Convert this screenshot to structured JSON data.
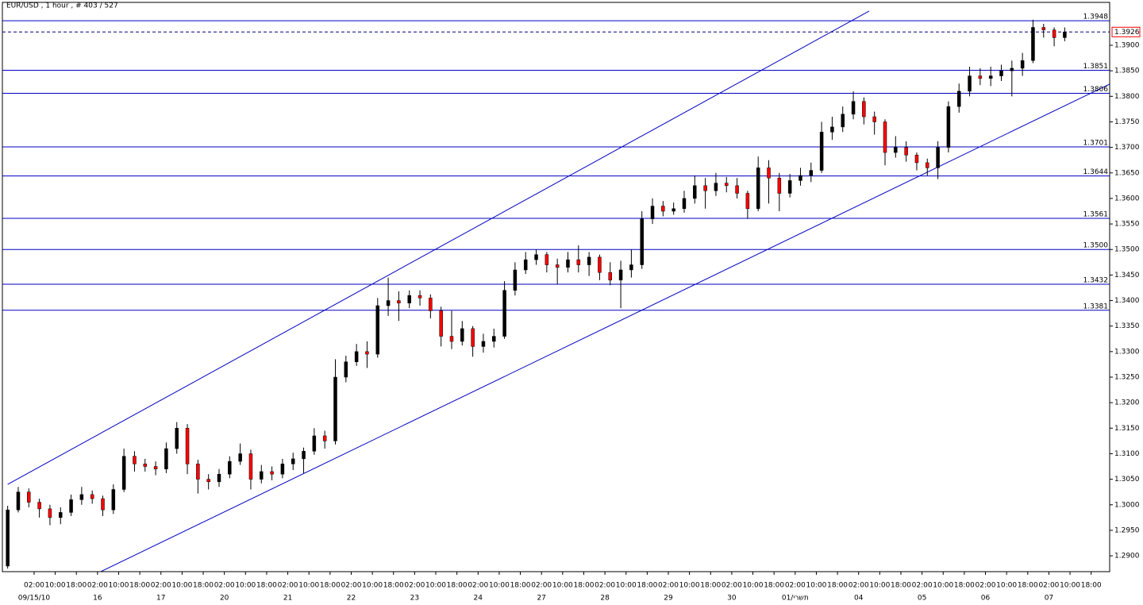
{
  "chart_data": {
    "type": "ohlc",
    "title": "EUR/USD , 1 hour , # 403 / 527",
    "x": [
      0,
      4,
      8,
      12,
      16,
      20,
      24,
      28,
      32,
      36,
      40,
      44,
      48,
      52,
      56,
      60,
      64,
      68,
      72,
      76,
      80,
      84,
      88,
      92,
      96,
      100,
      104,
      108,
      112,
      116,
      120,
      124,
      128,
      132,
      136,
      140,
      144,
      148,
      152,
      156,
      160,
      164,
      168,
      172,
      176,
      180,
      184,
      188,
      192,
      196,
      200,
      204,
      208,
      212,
      216,
      220,
      224,
      228,
      232,
      236,
      240,
      244,
      248,
      252,
      256,
      260,
      264,
      268,
      272,
      276,
      280,
      284,
      288,
      292,
      296,
      300,
      304,
      308,
      312,
      316,
      320,
      324,
      328,
      332,
      336,
      340,
      344,
      348,
      352,
      356,
      360,
      364,
      368,
      372,
      376,
      380,
      384,
      388,
      392,
      396,
      400
    ],
    "ohlc": [
      [
        1.288,
        1.2998,
        1.2875,
        1.299
      ],
      [
        1.299,
        1.3035,
        1.2985,
        1.3025
      ],
      [
        1.3025,
        1.3032,
        1.2995,
        1.3005
      ],
      [
        1.3005,
        1.3012,
        1.2975,
        1.2992
      ],
      [
        1.2992,
        1.3,
        1.296,
        1.2975
      ],
      [
        1.2975,
        1.2995,
        1.2962,
        1.2985
      ],
      [
        1.2985,
        1.302,
        1.2978,
        1.301
      ],
      [
        1.301,
        1.3035,
        1.3,
        1.302
      ],
      [
        1.302,
        1.3028,
        1.3002,
        1.3012
      ],
      [
        1.3012,
        1.3018,
        1.2978,
        1.299
      ],
      [
        1.299,
        1.304,
        1.2982,
        1.303
      ],
      [
        1.303,
        1.311,
        1.3025,
        1.3095
      ],
      [
        1.3095,
        1.3105,
        1.3065,
        1.308
      ],
      [
        1.308,
        1.309,
        1.3065,
        1.3075
      ],
      [
        1.3075,
        1.3085,
        1.3058,
        1.307
      ],
      [
        1.307,
        1.3122,
        1.3062,
        1.311
      ],
      [
        1.311,
        1.3162,
        1.31,
        1.315
      ],
      [
        1.315,
        1.3158,
        1.306,
        1.308
      ],
      [
        1.308,
        1.3088,
        1.3022,
        1.305
      ],
      [
        1.305,
        1.306,
        1.303,
        1.3045
      ],
      [
        1.3045,
        1.307,
        1.3035,
        1.306
      ],
      [
        1.306,
        1.3095,
        1.3052,
        1.3085
      ],
      [
        1.3085,
        1.312,
        1.3078,
        1.31
      ],
      [
        1.31,
        1.3108,
        1.303,
        1.305
      ],
      [
        1.305,
        1.3078,
        1.3042,
        1.3065
      ],
      [
        1.3065,
        1.3075,
        1.3048,
        1.306
      ],
      [
        1.306,
        1.309,
        1.3052,
        1.308
      ],
      [
        1.308,
        1.3102,
        1.3068,
        1.309
      ],
      [
        1.309,
        1.3112,
        1.3062,
        1.3105
      ],
      [
        1.3105,
        1.315,
        1.3098,
        1.3135
      ],
      [
        1.3135,
        1.3145,
        1.311,
        1.3125
      ],
      [
        1.3125,
        1.3285,
        1.3118,
        1.325
      ],
      [
        1.325,
        1.3292,
        1.324,
        1.328
      ],
      [
        1.328,
        1.3315,
        1.3272,
        1.33
      ],
      [
        1.33,
        1.332,
        1.3268,
        1.3295
      ],
      [
        1.3295,
        1.3405,
        1.3288,
        1.339
      ],
      [
        1.339,
        1.3445,
        1.337,
        1.34
      ],
      [
        1.34,
        1.3418,
        1.336,
        1.3395
      ],
      [
        1.3395,
        1.342,
        1.3385,
        1.341
      ],
      [
        1.341,
        1.342,
        1.339,
        1.3405
      ],
      [
        1.3405,
        1.3412,
        1.3365,
        1.338
      ],
      [
        1.338,
        1.3388,
        1.331,
        1.333
      ],
      [
        1.333,
        1.338,
        1.3305,
        1.332
      ],
      [
        1.332,
        1.336,
        1.3312,
        1.3345
      ],
      [
        1.3345,
        1.335,
        1.329,
        1.331
      ],
      [
        1.331,
        1.3335,
        1.3298,
        1.332
      ],
      [
        1.332,
        1.3345,
        1.3308,
        1.333
      ],
      [
        1.333,
        1.3438,
        1.3325,
        1.342
      ],
      [
        1.342,
        1.3475,
        1.341,
        1.346
      ],
      [
        1.346,
        1.3495,
        1.3452,
        1.348
      ],
      [
        1.348,
        1.35,
        1.347,
        1.349
      ],
      [
        1.349,
        1.3495,
        1.3455,
        1.347
      ],
      [
        1.347,
        1.3482,
        1.3432,
        1.3465
      ],
      [
        1.3465,
        1.3495,
        1.3455,
        1.348
      ],
      [
        1.348,
        1.3508,
        1.3455,
        1.347
      ],
      [
        1.347,
        1.3495,
        1.3448,
        1.3485
      ],
      [
        1.3485,
        1.349,
        1.344,
        1.3455
      ],
      [
        1.3455,
        1.3475,
        1.343,
        1.344
      ],
      [
        1.344,
        1.3478,
        1.3385,
        1.346
      ],
      [
        1.346,
        1.35,
        1.3445,
        1.347
      ],
      [
        1.347,
        1.3575,
        1.3462,
        1.356
      ],
      [
        1.356,
        1.36,
        1.355,
        1.3585
      ],
      [
        1.3585,
        1.3595,
        1.3565,
        1.3575
      ],
      [
        1.3575,
        1.3592,
        1.3568,
        1.358
      ],
      [
        1.358,
        1.3615,
        1.3572,
        1.36
      ],
      [
        1.36,
        1.3645,
        1.359,
        1.3625
      ],
      [
        1.3625,
        1.364,
        1.358,
        1.3615
      ],
      [
        1.3615,
        1.365,
        1.3605,
        1.363
      ],
      [
        1.363,
        1.3642,
        1.3612,
        1.3625
      ],
      [
        1.3625,
        1.364,
        1.36,
        1.361
      ],
      [
        1.361,
        1.3615,
        1.356,
        1.358
      ],
      [
        1.358,
        1.3682,
        1.3575,
        1.366
      ],
      [
        1.366,
        1.3675,
        1.359,
        1.364
      ],
      [
        1.364,
        1.365,
        1.3575,
        1.361
      ],
      [
        1.361,
        1.3648,
        1.3602,
        1.3635
      ],
      [
        1.3635,
        1.366,
        1.3625,
        1.3645
      ],
      [
        1.3645,
        1.367,
        1.3632,
        1.3655
      ],
      [
        1.3655,
        1.375,
        1.365,
        1.373
      ],
      [
        1.373,
        1.376,
        1.3715,
        1.374
      ],
      [
        1.374,
        1.378,
        1.373,
        1.3765
      ],
      [
        1.3765,
        1.381,
        1.3755,
        1.379
      ],
      [
        1.379,
        1.3798,
        1.3745,
        1.376
      ],
      [
        1.376,
        1.377,
        1.3725,
        1.375
      ],
      [
        1.375,
        1.3755,
        1.3665,
        1.369
      ],
      [
        1.369,
        1.3722,
        1.368,
        1.37
      ],
      [
        1.37,
        1.3712,
        1.3672,
        1.3685
      ],
      [
        1.3685,
        1.369,
        1.3655,
        1.367
      ],
      [
        1.367,
        1.3678,
        1.3645,
        1.366
      ],
      [
        1.366,
        1.3712,
        1.3638,
        1.37
      ],
      [
        1.37,
        1.379,
        1.369,
        1.378
      ],
      [
        1.378,
        1.3825,
        1.3768,
        1.381
      ],
      [
        1.381,
        1.3858,
        1.38,
        1.384
      ],
      [
        1.384,
        1.3855,
        1.3822,
        1.3835
      ],
      [
        1.3835,
        1.3858,
        1.382,
        1.384
      ],
      [
        1.384,
        1.3862,
        1.383,
        1.385
      ],
      [
        1.385,
        1.387,
        1.38,
        1.3855
      ],
      [
        1.3855,
        1.3885,
        1.384,
        1.387
      ],
      [
        1.387,
        1.395,
        1.3865,
        1.3935
      ],
      [
        1.3935,
        1.3942,
        1.3915,
        1.393
      ],
      [
        1.393,
        1.3935,
        1.3898,
        1.3915
      ],
      [
        1.3915,
        1.3935,
        1.3908,
        1.3926
      ]
    ],
    "up_color": "#000000",
    "down_color": "#ff0000",
    "xlim": [
      -2,
      417
    ],
    "ylim": [
      1.2869,
      1.3984
    ],
    "yticks": [
      {
        "value": 1.29,
        "label": "1.2900"
      },
      {
        "value": 1.295,
        "label": "1.2950"
      },
      {
        "value": 1.3,
        "label": "1.3000"
      },
      {
        "value": 1.305,
        "label": "1.3050"
      },
      {
        "value": 1.31,
        "label": "1.3100"
      },
      {
        "value": 1.315,
        "label": "1.3150"
      },
      {
        "value": 1.32,
        "label": "1.3200"
      },
      {
        "value": 1.325,
        "label": "1.3250"
      },
      {
        "value": 1.33,
        "label": "1.3300"
      },
      {
        "value": 1.335,
        "label": "1.3350"
      },
      {
        "value": 1.34,
        "label": "1.3400"
      },
      {
        "value": 1.345,
        "label": "1.3450"
      },
      {
        "value": 1.35,
        "label": "1.3500"
      },
      {
        "value": 1.355,
        "label": "1.3550"
      },
      {
        "value": 1.36,
        "label": "1.3600"
      },
      {
        "value": 1.365,
        "label": "1.3650"
      },
      {
        "value": 1.37,
        "label": "1.3700"
      },
      {
        "value": 1.375,
        "label": "1.3750"
      },
      {
        "value": 1.38,
        "label": "1.3800"
      },
      {
        "value": 1.385,
        "label": "1.3850"
      },
      {
        "value": 1.39,
        "label": "1.3900"
      }
    ],
    "xticks": [
      {
        "value": 10,
        "label": "02:00"
      },
      {
        "value": 18,
        "label": "10:00"
      },
      {
        "value": 26,
        "label": "18:00"
      },
      {
        "value": 34,
        "label": "02:00"
      },
      {
        "value": 42,
        "label": "10:00"
      },
      {
        "value": 50,
        "label": "18:00"
      },
      {
        "value": 58,
        "label": "02:00"
      },
      {
        "value": 66,
        "label": "10:00"
      },
      {
        "value": 74,
        "label": "18:00"
      },
      {
        "value": 82,
        "label": "02:00"
      },
      {
        "value": 90,
        "label": "10:00"
      },
      {
        "value": 98,
        "label": "18:00"
      },
      {
        "value": 106,
        "label": "02:00"
      },
      {
        "value": 114,
        "label": "10:00"
      },
      {
        "value": 122,
        "label": "18:00"
      },
      {
        "value": 130,
        "label": "02:00"
      },
      {
        "value": 138,
        "label": "10:00"
      },
      {
        "value": 146,
        "label": "18:00"
      },
      {
        "value": 154,
        "label": "02:00"
      },
      {
        "value": 162,
        "label": "10:00"
      },
      {
        "value": 170,
        "label": "18:00"
      },
      {
        "value": 178,
        "label": "02:00"
      },
      {
        "value": 186,
        "label": "10:00"
      },
      {
        "value": 194,
        "label": "18:00"
      },
      {
        "value": 202,
        "label": "02:00"
      },
      {
        "value": 210,
        "label": "10:00"
      },
      {
        "value": 218,
        "label": "18:00"
      },
      {
        "value": 226,
        "label": "02:00"
      },
      {
        "value": 234,
        "label": "10:00"
      },
      {
        "value": 242,
        "label": "18:00"
      },
      {
        "value": 250,
        "label": "02:00"
      },
      {
        "value": 258,
        "label": "10:00"
      },
      {
        "value": 266,
        "label": "18:00"
      },
      {
        "value": 274,
        "label": "02:00"
      },
      {
        "value": 282,
        "label": "10:00"
      },
      {
        "value": 290,
        "label": "18:00"
      },
      {
        "value": 298,
        "label": "02:00"
      },
      {
        "value": 306,
        "label": "10:00"
      },
      {
        "value": 314,
        "label": "18:00"
      },
      {
        "value": 322,
        "label": "02:00"
      },
      {
        "value": 330,
        "label": "10:00"
      },
      {
        "value": 338,
        "label": "18:00"
      },
      {
        "value": 346,
        "label": "02:00"
      },
      {
        "value": 354,
        "label": "10:00"
      },
      {
        "value": 362,
        "label": "18:00"
      },
      {
        "value": 370,
        "label": "02:00"
      },
      {
        "value": 378,
        "label": "10:00"
      },
      {
        "value": 386,
        "label": "18:00"
      },
      {
        "value": 394,
        "label": "02:00"
      },
      {
        "value": 402,
        "label": "10:00"
      },
      {
        "value": 410,
        "label": "18:00"
      }
    ],
    "date_ticks": [
      {
        "value": 10,
        "label": "09/15/10"
      },
      {
        "value": 34,
        "label": "16"
      },
      {
        "value": 58,
        "label": "17"
      },
      {
        "value": 82,
        "label": "20"
      },
      {
        "value": 106,
        "label": "21"
      },
      {
        "value": 130,
        "label": "22"
      },
      {
        "value": 154,
        "label": "23"
      },
      {
        "value": 178,
        "label": "24"
      },
      {
        "value": 202,
        "label": "27"
      },
      {
        "value": 226,
        "label": "28"
      },
      {
        "value": 250,
        "label": "29"
      },
      {
        "value": 274,
        "label": "30"
      },
      {
        "value": 298,
        "label": "01/תשרי"
      },
      {
        "value": 322,
        "label": "04"
      },
      {
        "value": 346,
        "label": "05"
      },
      {
        "value": 370,
        "label": "06"
      },
      {
        "value": 394,
        "label": "07"
      }
    ],
    "levels": [
      1.3948,
      1.3851,
      1.3806,
      1.3701,
      1.3644,
      1.3561,
      {
        "value": 1.35,
        "label": "1.3500"
      },
      1.3432,
      1.3381
    ],
    "level_color": "#0000c0",
    "current_price": 1.3926,
    "trendlines": [
      {
        "x": [
          0,
          326
        ],
        "y": [
          1.304,
          1.3967
        ]
      },
      {
        "x": [
          34,
          417
        ],
        "y": [
          1.2866,
          1.3824
        ]
      }
    ]
  }
}
